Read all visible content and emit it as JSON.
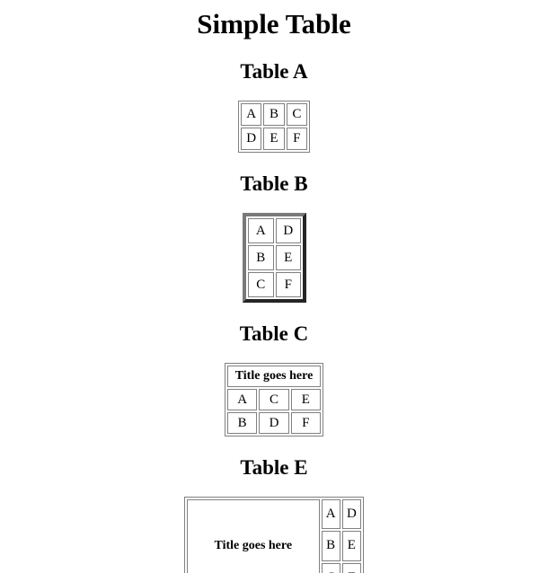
{
  "title": "Simple Table",
  "table_a": {
    "heading": "Table A",
    "rows": [
      [
        "A",
        "B",
        "C"
      ],
      [
        "D",
        "E",
        "F"
      ]
    ]
  },
  "table_b": {
    "heading": "Table B",
    "rows": [
      [
        "A",
        "D"
      ],
      [
        "B",
        "E"
      ],
      [
        "C",
        "F"
      ]
    ]
  },
  "table_c": {
    "heading": "Table C",
    "caption": "Title goes here",
    "rows": [
      [
        "A",
        "C",
        "E"
      ],
      [
        "B",
        "D",
        "F"
      ]
    ]
  },
  "table_e": {
    "heading": "Table E",
    "caption": "Title goes here",
    "rows": [
      [
        "A",
        "D"
      ],
      [
        "B",
        "E"
      ],
      [
        "C",
        "F"
      ]
    ]
  }
}
